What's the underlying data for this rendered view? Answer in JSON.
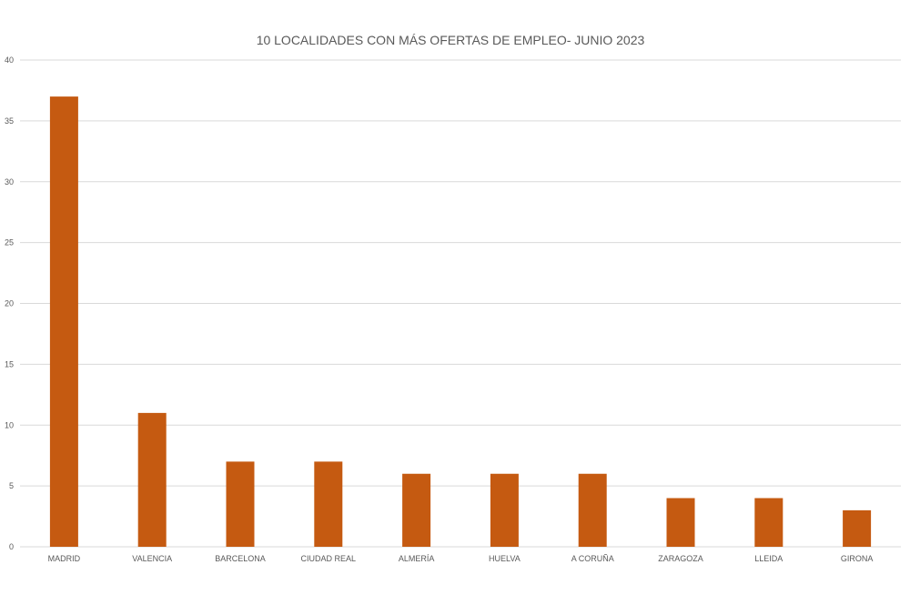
{
  "chart_data": {
    "type": "bar",
    "title": "10 LOCALIDADES CON MÁS OFERTAS DE EMPLEO- JUNIO 2023",
    "xlabel": "",
    "ylabel": "",
    "categories": [
      "MADRID",
      "VALENCIA",
      "BARCELONA",
      "CIUDAD REAL",
      "ALMERÍA",
      "HUELVA",
      "A CORUÑA",
      "ZARAGOZA",
      "LLEIDA",
      "GIRONA"
    ],
    "values": [
      37,
      11,
      7,
      7,
      6,
      6,
      6,
      4,
      4,
      3
    ],
    "ylim": [
      0,
      40
    ],
    "yticks": [
      0,
      5,
      10,
      15,
      20,
      25,
      30,
      35,
      40
    ],
    "grid": true,
    "legend": "none",
    "bar_color": "#c55a11"
  }
}
